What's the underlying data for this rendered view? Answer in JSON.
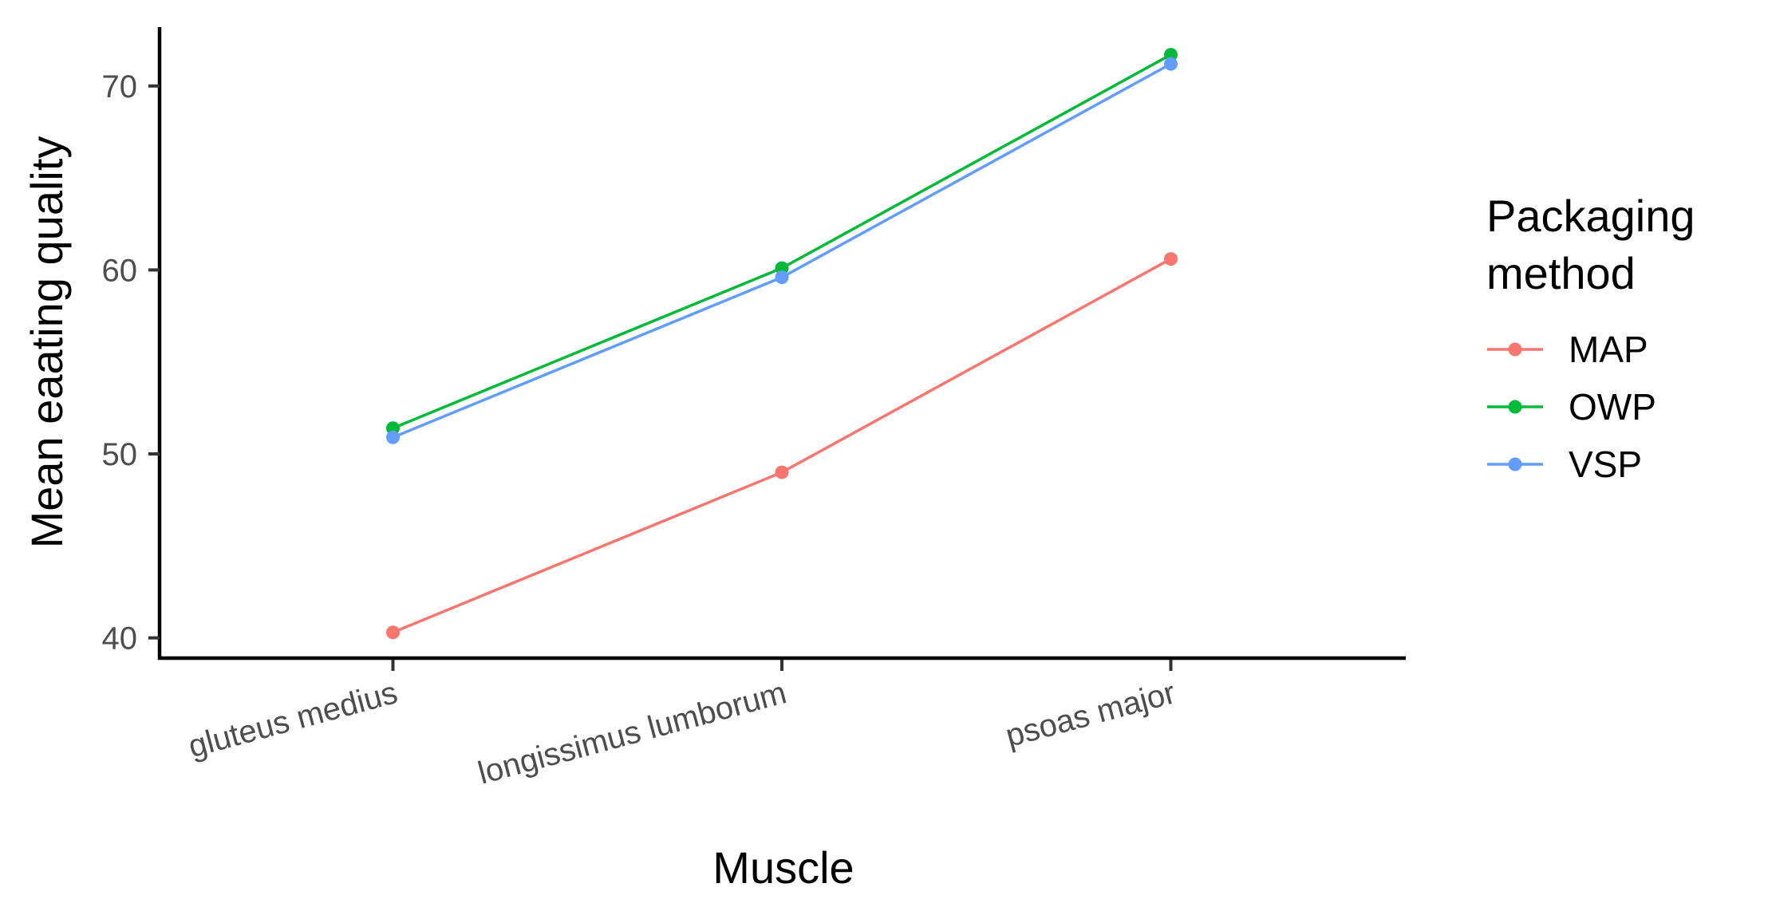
{
  "chart_data": {
    "type": "line",
    "categories": [
      "gluteus medius",
      "longissimus lumborum",
      "psoas major"
    ],
    "series": [
      {
        "name": "MAP",
        "values": [
          40.3,
          49.0,
          60.6
        ],
        "color": "#F8766D"
      },
      {
        "name": "OWP",
        "values": [
          51.4,
          60.1,
          71.7
        ],
        "color": "#00BA38"
      },
      {
        "name": "VSP",
        "values": [
          50.9,
          59.6,
          71.2
        ],
        "color": "#619CFF"
      }
    ],
    "xlabel": "Muscle",
    "ylabel": "Mean eaating quality",
    "ylim": [
      38.9,
      73.2
    ],
    "yticks": [
      40,
      50,
      60,
      70
    ],
    "grid": false,
    "legend": {
      "title_lines": [
        "Packaging",
        "method"
      ],
      "position": "right"
    }
  }
}
